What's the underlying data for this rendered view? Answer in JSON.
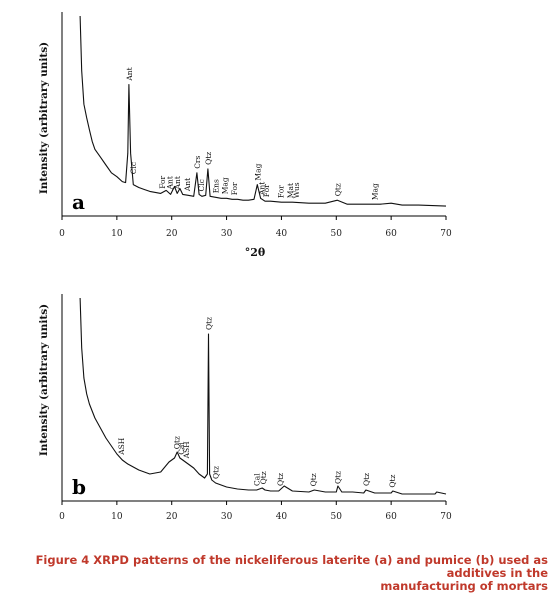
{
  "caption": {
    "line1": "Figure 4 XRPD patterns of the nickeliferous laterite (a) and pumice (b) used as additives in the",
    "line2": "manufacturing of mortars",
    "color": "#c0392b"
  },
  "chart_data": [
    {
      "type": "line",
      "panel_label": "a",
      "xlabel": "°2θ",
      "ylabel": "Intensity (arbitrary units)",
      "xlim": [
        0,
        70
      ],
      "xticks": [
        "0",
        "10",
        "20",
        "30",
        "40",
        "50",
        "60",
        "70"
      ],
      "grid": false,
      "series": [
        {
          "x": [
            3.3,
            3.6,
            4.0,
            4.5,
            5.0,
            5.5,
            6.0,
            7.0,
            8.0,
            9.0,
            10.0,
            11.0,
            11.6,
            12.0,
            12.2,
            12.5,
            13.0,
            14.0,
            15.0,
            16.0,
            17.0,
            18.0,
            19.0,
            19.8,
            20.5,
            21.0,
            21.5,
            22.0,
            23.0,
            24.0,
            24.6,
            25.0,
            25.5,
            26.2,
            26.6,
            27.0,
            28.0,
            29.0,
            30.0,
            31.0,
            32.0,
            33.0,
            34.0,
            35.0,
            35.6,
            36.2,
            37.0,
            38.0,
            40.0,
            42.0,
            45.0,
            48.0,
            50.2,
            52.0,
            55.0,
            58.0,
            60.0,
            62.0,
            65.0,
            70.0
          ],
          "y": [
            1.0,
            0.72,
            0.55,
            0.48,
            0.42,
            0.36,
            0.32,
            0.28,
            0.24,
            0.2,
            0.18,
            0.155,
            0.15,
            0.3,
            0.65,
            0.3,
            0.14,
            0.125,
            0.115,
            0.105,
            0.1,
            0.095,
            0.11,
            0.09,
            0.13,
            0.095,
            0.12,
            0.09,
            0.085,
            0.08,
            0.2,
            0.09,
            0.08,
            0.085,
            0.22,
            0.08,
            0.075,
            0.07,
            0.07,
            0.065,
            0.065,
            0.06,
            0.06,
            0.065,
            0.14,
            0.07,
            0.055,
            0.055,
            0.05,
            0.05,
            0.045,
            0.045,
            0.06,
            0.04,
            0.04,
            0.04,
            0.045,
            0.035,
            0.035,
            0.03
          ]
        }
      ],
      "annotations": [
        {
          "text": "Ant",
          "x": 12.2
        },
        {
          "text": "Clc",
          "x": 12.9
        },
        {
          "text": "For",
          "x": 18.2
        },
        {
          "text": "Ant",
          "x": 19.6
        },
        {
          "text": "Ant",
          "x": 21.0
        },
        {
          "text": "Ant",
          "x": 22.8
        },
        {
          "text": "Crs",
          "x": 24.6
        },
        {
          "text": "Clc",
          "x": 25.3
        },
        {
          "text": "Qtz",
          "x": 26.6
        },
        {
          "text": "Ens",
          "x": 28.0
        },
        {
          "text": "Mag",
          "x": 29.6
        },
        {
          "text": "For",
          "x": 31.4
        },
        {
          "text": "Mag",
          "x": 35.6
        },
        {
          "text": "Ant",
          "x": 36.4
        },
        {
          "text": "For",
          "x": 37.2
        },
        {
          "text": "For",
          "x": 39.8
        },
        {
          "text": "Mat",
          "x": 41.6
        },
        {
          "text": "Wus",
          "x": 42.7
        },
        {
          "text": "Qtz",
          "x": 50.2
        },
        {
          "text": "Mag",
          "x": 57.0
        }
      ]
    },
    {
      "type": "line",
      "panel_label": "b",
      "xlabel": "",
      "ylabel": "Intensity (arbitrary units)",
      "xlim": [
        0,
        70
      ],
      "xticks": [
        "0",
        "10",
        "20",
        "30",
        "40",
        "50",
        "60",
        "70"
      ],
      "grid": false,
      "series": [
        {
          "x": [
            3.3,
            3.6,
            4.0,
            4.5,
            5.0,
            6.0,
            7.0,
            8.0,
            9.0,
            10.0,
            11.0,
            12.0,
            14.0,
            16.0,
            18.0,
            19.5,
            20.5,
            21.0,
            21.5,
            22.0,
            23.0,
            24.0,
            25.0,
            26.0,
            26.5,
            26.7,
            26.9,
            27.3,
            28.0,
            29.0,
            30.0,
            32.0,
            34.0,
            35.5,
            36.5,
            37.0,
            38.0,
            39.5,
            40.5,
            42.0,
            45.0,
            46.0,
            48.0,
            50.0,
            50.3,
            51.0,
            53.0,
            55.0,
            55.4,
            57.0,
            60.0,
            60.3,
            62.0,
            65.0,
            68.0,
            68.3,
            70.0
          ],
          "y": [
            1.0,
            0.75,
            0.6,
            0.52,
            0.47,
            0.4,
            0.35,
            0.3,
            0.26,
            0.22,
            0.19,
            0.17,
            0.14,
            0.12,
            0.13,
            0.18,
            0.2,
            0.23,
            0.2,
            0.19,
            0.17,
            0.15,
            0.12,
            0.1,
            0.12,
            0.82,
            0.12,
            0.09,
            0.075,
            0.065,
            0.055,
            0.045,
            0.04,
            0.04,
            0.05,
            0.04,
            0.035,
            0.035,
            0.06,
            0.035,
            0.03,
            0.04,
            0.03,
            0.03,
            0.06,
            0.03,
            0.03,
            0.025,
            0.04,
            0.025,
            0.025,
            0.035,
            0.02,
            0.02,
            0.02,
            0.03,
            0.02
          ]
        }
      ],
      "annotations": [
        {
          "text": "ASH",
          "x": 10.8
        },
        {
          "text": "Qtz",
          "x": 20.9
        },
        {
          "text": "Cal",
          "x": 21.7
        },
        {
          "text": "ASH",
          "x": 22.6
        },
        {
          "text": "Qtz",
          "x": 26.7
        },
        {
          "text": "Qtz",
          "x": 28.0
        },
        {
          "text": "Cal",
          "x": 35.5
        },
        {
          "text": "Qtz",
          "x": 36.6
        },
        {
          "text": "Qtz",
          "x": 39.7
        },
        {
          "text": "Qtz",
          "x": 45.8
        },
        {
          "text": "Qtz",
          "x": 50.2
        },
        {
          "text": "Qtz",
          "x": 55.4
        },
        {
          "text": "Qtz",
          "x": 60.2
        }
      ]
    }
  ]
}
